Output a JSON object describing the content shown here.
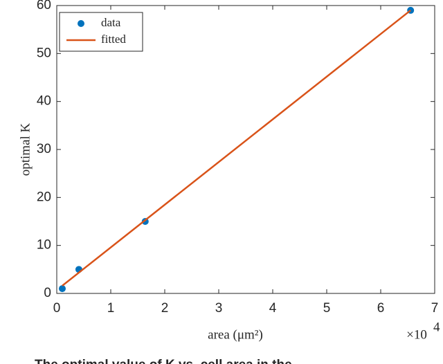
{
  "chart_data": {
    "type": "scatter",
    "xlabel": "area (μm²)",
    "ylabel": "optimal K",
    "x_multiplier": {
      "base": "×10",
      "exponent": "4"
    },
    "caption": "The optimal value of K vs. cell area in the",
    "xlim": [
      0,
      70000
    ],
    "xticks": [
      {
        "value": 0,
        "label": "0"
      },
      {
        "value": 10000,
        "label": "1"
      },
      {
        "value": 20000,
        "label": "2"
      },
      {
        "value": 30000,
        "label": "3"
      },
      {
        "value": 40000,
        "label": "4"
      },
      {
        "value": 50000,
        "label": "5"
      },
      {
        "value": 60000,
        "label": "6"
      },
      {
        "value": 70000,
        "label": "7"
      }
    ],
    "ylim": [
      0,
      60
    ],
    "yticks": [
      0,
      10,
      20,
      30,
      40,
      50,
      60
    ],
    "legend": "top-left",
    "series": [
      {
        "name": "data",
        "color": "#0072BD",
        "style": "markers",
        "x": [
          1024,
          4096,
          16384,
          65536
        ],
        "values": [
          1,
          5,
          15,
          59
        ]
      },
      {
        "name": "fitted",
        "color": "#D95319",
        "style": "line",
        "x": [
          1024,
          65536
        ],
        "values": [
          1.6,
          59.0
        ]
      }
    ]
  }
}
